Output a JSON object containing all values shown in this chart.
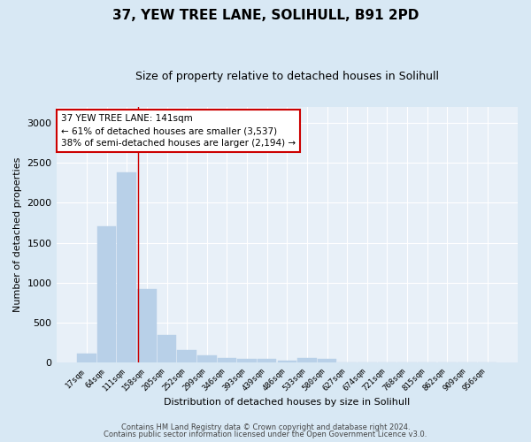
{
  "title1": "37, YEW TREE LANE, SOLIHULL, B91 2PD",
  "title2": "Size of property relative to detached houses in Solihull",
  "xlabel": "Distribution of detached houses by size in Solihull",
  "ylabel": "Number of detached properties",
  "bar_color": "#b8d0e8",
  "bar_edge_color": "#b8d0e8",
  "background_color": "#d8e8f4",
  "plot_bg_color": "#e8f0f8",
  "grid_color": "#ffffff",
  "categories": [
    "17sqm",
    "64sqm",
    "111sqm",
    "158sqm",
    "205sqm",
    "252sqm",
    "299sqm",
    "346sqm",
    "393sqm",
    "439sqm",
    "486sqm",
    "533sqm",
    "580sqm",
    "627sqm",
    "674sqm",
    "721sqm",
    "768sqm",
    "815sqm",
    "862sqm",
    "909sqm",
    "956sqm"
  ],
  "values": [
    120,
    1700,
    2380,
    920,
    350,
    160,
    95,
    55,
    45,
    50,
    30,
    55,
    45,
    0,
    0,
    0,
    0,
    0,
    0,
    0,
    0
  ],
  "ylim": [
    0,
    3200
  ],
  "yticks": [
    0,
    500,
    1000,
    1500,
    2000,
    2500,
    3000
  ],
  "red_line_x": 2.56,
  "annotation_text": "37 YEW TREE LANE: 141sqm\n← 61% of detached houses are smaller (3,537)\n38% of semi-detached houses are larger (2,194) →",
  "annotation_box_color": "#ffffff",
  "annotation_border_color": "#cc0000",
  "footer_text1": "Contains HM Land Registry data © Crown copyright and database right 2024.",
  "footer_text2": "Contains public sector information licensed under the Open Government Licence v3.0."
}
